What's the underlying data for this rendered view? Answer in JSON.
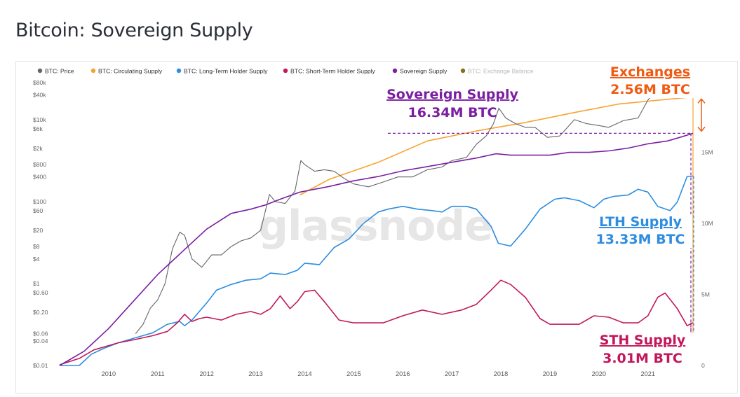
{
  "page": {
    "title": "Bitcoin: Sovereign Supply"
  },
  "colors": {
    "price": "#666666",
    "circulating": "#f7a230",
    "lth": "#2d8de0",
    "sth": "#c2185b",
    "sovereign": "#7b1fa2",
    "exchange_legend": "#8a6d1f",
    "exchanges_annotation": "#f05a12",
    "watermark": "#e6e6e6"
  },
  "chart_data": {
    "type": "line",
    "title": "Bitcoin: Sovereign Supply",
    "legend_position": "top-left",
    "legend": [
      {
        "name": "BTC: Price",
        "color": "#666666",
        "muted": false
      },
      {
        "name": "BTC: Circulating Supply",
        "color": "#f7a230",
        "muted": false
      },
      {
        "name": "BTC: Long-Term Holder Supply",
        "color": "#2d8de0",
        "muted": false
      },
      {
        "name": "BTC: Short-Term Holder Supply",
        "color": "#c2185b",
        "muted": false
      },
      {
        "name": "Sovereign Supply",
        "color": "#7b1fa2",
        "muted": false
      },
      {
        "name": "BTC: Exchange Balance",
        "color": "#8a6d1f",
        "muted": true
      }
    ],
    "x_ticks": [
      "2010",
      "2011",
      "2012",
      "2013",
      "2014",
      "2015",
      "2016",
      "2017",
      "2018",
      "2019",
      "2020",
      "2021"
    ],
    "x_range": [
      2009.0,
      2021.92
    ],
    "y_left_scale": "log",
    "y_left_range": [
      0.01,
      110000
    ],
    "y_left_ticks": [
      {
        "label": "$80k",
        "value": 80000
      },
      {
        "label": "$40k",
        "value": 40000
      },
      {
        "label": "$10k",
        "value": 10000
      },
      {
        "label": "$6k",
        "value": 6000
      },
      {
        "label": "$2k",
        "value": 2000
      },
      {
        "label": "$800",
        "value": 800
      },
      {
        "label": "$400",
        "value": 400
      },
      {
        "label": "$100",
        "value": 100
      },
      {
        "label": "$60",
        "value": 60
      },
      {
        "label": "$20",
        "value": 20
      },
      {
        "label": "$8",
        "value": 8
      },
      {
        "label": "$4",
        "value": 4
      },
      {
        "label": "$1",
        "value": 1
      },
      {
        "label": "$0.60",
        "value": 0.6
      },
      {
        "label": "$0.20",
        "value": 0.2
      },
      {
        "label": "$0.06",
        "value": 0.06
      },
      {
        "label": "$0.04",
        "value": 0.04
      },
      {
        "label": "$0.01",
        "value": 0.01
      }
    ],
    "y_right_range": [
      0,
      20.3
    ],
    "y_right_ticks": [
      {
        "label": "15M",
        "value": 15
      },
      {
        "label": "10M",
        "value": 10
      },
      {
        "label": "5M",
        "value": 5
      },
      {
        "label": "0",
        "value": 0
      }
    ],
    "series": [
      {
        "name": "BTC: Price",
        "axis": "left",
        "color": "#666666",
        "x": [
          2010.55,
          2010.7,
          2010.85,
          2011.0,
          2011.15,
          2011.3,
          2011.45,
          2011.55,
          2011.7,
          2011.9,
          2012.1,
          2012.3,
          2012.5,
          2012.7,
          2012.9,
          2013.1,
          2013.28,
          2013.4,
          2013.6,
          2013.8,
          2013.92,
          2014.0,
          2014.2,
          2014.4,
          2014.6,
          2014.8,
          2015.0,
          2015.3,
          2015.6,
          2015.9,
          2016.2,
          2016.5,
          2016.8,
          2017.0,
          2017.3,
          2017.5,
          2017.7,
          2017.85,
          2017.96,
          2018.1,
          2018.3,
          2018.5,
          2018.7,
          2018.95,
          2019.2,
          2019.5,
          2019.75,
          2020.0,
          2020.2,
          2020.5,
          2020.8,
          2021.0,
          2021.2,
          2021.35,
          2021.55,
          2021.7,
          2021.85,
          2021.92
        ],
        "values": [
          0.06,
          0.1,
          0.25,
          0.4,
          1.0,
          7,
          18,
          15,
          4,
          2.5,
          5.0,
          5.0,
          8,
          11,
          13,
          20,
          150,
          100,
          90,
          180,
          1000,
          800,
          550,
          600,
          550,
          370,
          270,
          230,
          300,
          400,
          400,
          600,
          700,
          1000,
          1200,
          2500,
          4000,
          8000,
          19000,
          11000,
          8000,
          6500,
          6500,
          3700,
          4000,
          10000,
          8000,
          7200,
          6500,
          9500,
          11000,
          30000,
          58000,
          55000,
          35000,
          45000,
          60000,
          50000
        ]
      },
      {
        "name": "BTC: Circulating Supply",
        "axis": "right",
        "color": "#f7a230",
        "x": [
          2013.9,
          2014.5,
          2015.5,
          2016.5,
          2017.5,
          2018.5,
          2019.5,
          2020.4,
          2021.0,
          2021.92
        ],
        "values": [
          12.0,
          13.1,
          14.3,
          15.8,
          16.5,
          17.1,
          17.8,
          18.4,
          18.6,
          18.9
        ]
      },
      {
        "name": "BTC: Long-Term Holder Supply",
        "axis": "right",
        "color": "#2d8de0",
        "x": [
          2009.0,
          2009.4,
          2009.65,
          2009.9,
          2010.2,
          2010.5,
          2010.9,
          2011.2,
          2011.45,
          2011.55,
          2011.7,
          2011.85,
          2012.0,
          2012.2,
          2012.5,
          2012.8,
          2013.1,
          2013.3,
          2013.6,
          2013.85,
          2014.0,
          2014.3,
          2014.6,
          2014.9,
          2015.2,
          2015.5,
          2015.7,
          2016.0,
          2016.3,
          2016.6,
          2016.8,
          2017.0,
          2017.3,
          2017.5,
          2017.8,
          2017.95,
          2018.2,
          2018.5,
          2018.8,
          2019.1,
          2019.3,
          2019.6,
          2019.9,
          2020.1,
          2020.3,
          2020.6,
          2020.8,
          2021.0,
          2021.2,
          2021.45,
          2021.6,
          2021.8,
          2021.92
        ],
        "values": [
          0,
          0,
          0.8,
          1.2,
          1.6,
          1.9,
          2.3,
          2.9,
          3.1,
          2.8,
          3.2,
          3.8,
          4.4,
          5.3,
          5.7,
          6.0,
          6.1,
          6.5,
          6.4,
          6.7,
          7.2,
          7.1,
          8.3,
          8.9,
          10.0,
          10.8,
          11.0,
          11.2,
          11.0,
          10.9,
          10.8,
          11.2,
          11.2,
          11.0,
          9.8,
          8.6,
          8.4,
          9.6,
          11.0,
          11.7,
          11.8,
          11.6,
          11.1,
          11.7,
          11.9,
          12.0,
          12.4,
          12.2,
          11.2,
          10.9,
          11.5,
          13.3,
          13.33
        ]
      },
      {
        "name": "BTC: Short-Term Holder Supply",
        "axis": "right",
        "color": "#c2185b",
        "x": [
          2009.0,
          2009.4,
          2009.7,
          2009.9,
          2010.2,
          2010.5,
          2010.9,
          2011.2,
          2011.4,
          2011.55,
          2011.7,
          2011.85,
          2012.0,
          2012.3,
          2012.6,
          2012.9,
          2013.1,
          2013.3,
          2013.5,
          2013.7,
          2013.85,
          2014.0,
          2014.2,
          2014.4,
          2014.7,
          2015.0,
          2015.3,
          2015.6,
          2016.0,
          2016.4,
          2016.8,
          2017.2,
          2017.5,
          2017.8,
          2018.0,
          2018.2,
          2018.5,
          2018.8,
          2019.0,
          2019.3,
          2019.6,
          2019.9,
          2020.2,
          2020.5,
          2020.8,
          2021.0,
          2021.2,
          2021.35,
          2021.6,
          2021.8,
          2021.92
        ],
        "values": [
          0.05,
          0.5,
          1.1,
          1.3,
          1.6,
          1.8,
          2.1,
          2.4,
          3.0,
          3.6,
          3.1,
          3.3,
          3.4,
          3.2,
          3.6,
          3.8,
          3.6,
          4.0,
          4.9,
          4.0,
          4.5,
          5.2,
          5.3,
          4.5,
          3.2,
          3.0,
          3.0,
          3.0,
          3.5,
          3.9,
          3.6,
          3.9,
          4.3,
          5.3,
          6.0,
          5.7,
          4.8,
          3.3,
          2.9,
          2.9,
          2.9,
          3.5,
          3.4,
          3.0,
          3.0,
          3.5,
          4.8,
          5.1,
          4.0,
          2.8,
          3.01
        ]
      },
      {
        "name": "Sovereign Supply",
        "axis": "right",
        "color": "#7b1fa2",
        "x": [
          2009.0,
          2009.5,
          2010.0,
          2010.5,
          2011.0,
          2011.5,
          2012.0,
          2012.5,
          2012.9,
          2013.2,
          2013.5,
          2013.9,
          2014.2,
          2014.5,
          2015.0,
          2015.5,
          2016.0,
          2016.5,
          2017.0,
          2017.5,
          2017.9,
          2018.2,
          2018.6,
          2019.0,
          2019.4,
          2019.8,
          2020.2,
          2020.6,
          2021.0,
          2021.4,
          2021.7,
          2021.92
        ],
        "values": [
          0,
          1.0,
          2.6,
          4.5,
          6.4,
          8.0,
          9.6,
          10.7,
          11.0,
          11.3,
          11.7,
          12.2,
          12.4,
          12.6,
          13.0,
          13.3,
          13.7,
          14.0,
          14.3,
          14.6,
          14.9,
          14.8,
          14.8,
          14.8,
          15.0,
          15.0,
          15.1,
          15.3,
          15.6,
          15.8,
          16.1,
          16.34
        ]
      }
    ],
    "annotations": [
      {
        "id": "exchanges",
        "label": "Exchanges",
        "value": "2.56M BTC",
        "color": "#f05a12"
      },
      {
        "id": "sovereign",
        "label": "Sovereign Supply",
        "value": "16.34M BTC",
        "color": "#7b1fa2"
      },
      {
        "id": "lth",
        "label": "LTH Supply",
        "value": "13.33M BTC",
        "color": "#2d8de0"
      },
      {
        "id": "sth",
        "label": "STH Supply",
        "value": "3.01M BTC",
        "color": "#c2185b"
      }
    ],
    "watermark": "glassnode"
  }
}
